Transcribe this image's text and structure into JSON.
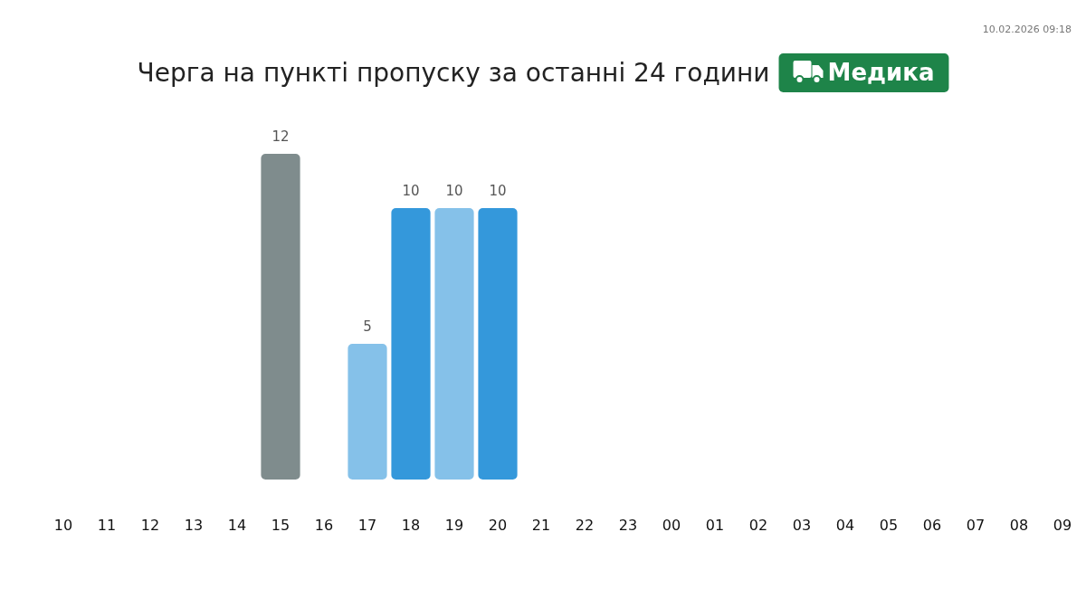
{
  "chart_data": {
    "type": "bar",
    "title": "Черга на пункті пропуску за останні 24 години",
    "subtitle": "Медика",
    "annotations": [
      "10.02.2026 09:18"
    ],
    "categories": [
      "10",
      "11",
      "12",
      "13",
      "14",
      "15",
      "16",
      "17",
      "18",
      "19",
      "20",
      "21",
      "22",
      "23",
      "00",
      "01",
      "02",
      "03",
      "04",
      "05",
      "06",
      "07",
      "08",
      "09"
    ],
    "values": [
      null,
      null,
      null,
      null,
      null,
      12,
      null,
      5,
      10,
      10,
      10,
      null,
      null,
      null,
      null,
      null,
      null,
      null,
      null,
      null,
      null,
      null,
      null,
      null
    ],
    "colors": [
      null,
      null,
      null,
      null,
      null,
      "#7f8c8d",
      null,
      "#85c1e9",
      "#3498db",
      "#85c1e9",
      "#3498db",
      null,
      null,
      null,
      null,
      null,
      null,
      null,
      null,
      null,
      null,
      null,
      null,
      null
    ],
    "data_labels": true
  }
}
